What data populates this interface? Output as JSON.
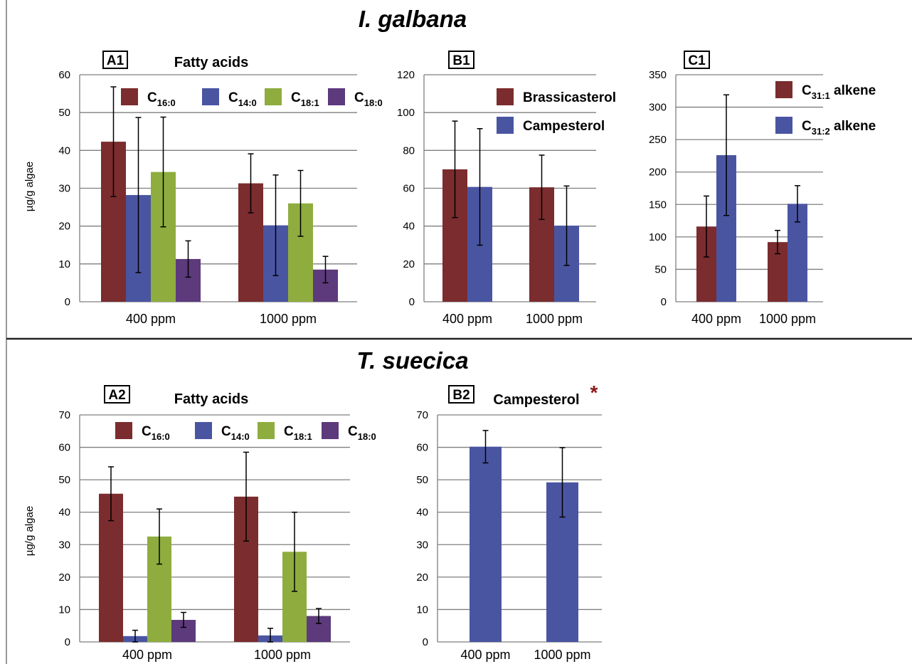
{
  "sections": [
    {
      "title": "I. galbana"
    },
    {
      "title": "T. suecica"
    }
  ],
  "colors": {
    "C16": "#7b2c2e",
    "C14": "#4a55a2",
    "C18_1": "#8ead3e",
    "C18_0": "#5c3a7c",
    "grid": "#7f7f7f",
    "error": "#000000",
    "star": "#8b1a1a"
  },
  "chart_data": [
    {
      "panel": "A1",
      "section": "I. galbana",
      "type": "bar",
      "title": "Fatty acids",
      "ylabel": "µg/g algae",
      "categories": [
        "400 ppm",
        "1000 ppm"
      ],
      "ylim": [
        0,
        60
      ],
      "yticks": [
        0,
        10,
        20,
        30,
        40,
        50,
        60
      ],
      "legend_placement": "top",
      "series": [
        {
          "name": "C",
          "sub": "16:0",
          "color": "#7b2c2e",
          "values": [
            42.3,
            31.3
          ],
          "err": [
            14.5,
            7.8
          ]
        },
        {
          "name": "C",
          "sub": "14:0",
          "color": "#4a55a2",
          "values": [
            28.2,
            20.2
          ],
          "err": [
            20.5,
            13.3
          ]
        },
        {
          "name": "C",
          "sub": "18:1",
          "color": "#8ead3e",
          "values": [
            34.3,
            26.0
          ],
          "err": [
            14.5,
            8.7
          ]
        },
        {
          "name": "C",
          "sub": "18:0",
          "color": "#5c3a7c",
          "values": [
            11.3,
            8.5
          ],
          "err": [
            4.8,
            3.5
          ]
        }
      ]
    },
    {
      "panel": "B1",
      "section": "I. galbana",
      "type": "bar",
      "title": "",
      "ylabel": "",
      "categories": [
        "400 ppm",
        "1000 ppm"
      ],
      "ylim": [
        0,
        120
      ],
      "yticks": [
        0,
        20,
        40,
        60,
        80,
        100,
        120
      ],
      "legend_placement": "top-right",
      "series": [
        {
          "name": "Brassicasterol",
          "sub": "",
          "color": "#7b2c2e",
          "values": [
            70.0,
            60.5
          ],
          "err": [
            25.5,
            17.0
          ]
        },
        {
          "name": "Campesterol",
          "sub": "",
          "color": "#4a55a2",
          "values": [
            60.7,
            40.2
          ],
          "err": [
            30.8,
            21.0
          ]
        }
      ]
    },
    {
      "panel": "C1",
      "section": "I. galbana",
      "type": "bar",
      "title": "",
      "ylabel": "",
      "categories": [
        "400 ppm",
        "1000 ppm"
      ],
      "ylim": [
        0,
        350
      ],
      "yticks": [
        0,
        50,
        100,
        150,
        200,
        250,
        300,
        350
      ],
      "legend_placement": "top-right",
      "series": [
        {
          "name": "C",
          "sub": "31:1",
          "suffix": " alkene",
          "color": "#7b2c2e",
          "values": [
            116,
            92
          ],
          "err": [
            47,
            18
          ]
        },
        {
          "name": "C",
          "sub": "31:2",
          "suffix": " alkene",
          "color": "#4a55a2",
          "values": [
            226,
            151
          ],
          "err": [
            93,
            28
          ]
        }
      ]
    },
    {
      "panel": "A2",
      "section": "T. suecica",
      "type": "bar",
      "title": "Fatty acids",
      "ylabel": "µg/g algae",
      "categories": [
        "400 ppm",
        "1000 ppm"
      ],
      "ylim": [
        0,
        70
      ],
      "yticks": [
        0,
        10,
        20,
        30,
        40,
        50,
        60,
        70
      ],
      "legend_placement": "top",
      "series": [
        {
          "name": "C",
          "sub": "16:0",
          "color": "#7b2c2e",
          "values": [
            45.7,
            44.8
          ],
          "err": [
            8.3,
            13.7
          ]
        },
        {
          "name": "C",
          "sub": "14:0",
          "color": "#4a55a2",
          "values": [
            1.8,
            2.0
          ],
          "err": [
            1.8,
            2.2
          ]
        },
        {
          "name": "C",
          "sub": "18:1",
          "color": "#8ead3e",
          "values": [
            32.5,
            27.8
          ],
          "err": [
            8.5,
            12.2
          ]
        },
        {
          "name": "C",
          "sub": "18:0",
          "color": "#5c3a7c",
          "values": [
            6.8,
            8.0
          ],
          "err": [
            2.3,
            2.3
          ]
        }
      ]
    },
    {
      "panel": "B2",
      "section": "T. suecica",
      "type": "bar",
      "title": "Campesterol",
      "title_mark": "*",
      "ylabel": "",
      "categories": [
        "400 ppm",
        "1000 ppm"
      ],
      "ylim": [
        0,
        70
      ],
      "yticks": [
        0,
        10,
        20,
        30,
        40,
        50,
        60,
        70
      ],
      "legend_placement": "none",
      "series": [
        {
          "name": "Campesterol",
          "sub": "",
          "color": "#4a55a2",
          "values": [
            60.2,
            49.2
          ],
          "err": [
            5.0,
            10.7
          ]
        }
      ]
    }
  ]
}
